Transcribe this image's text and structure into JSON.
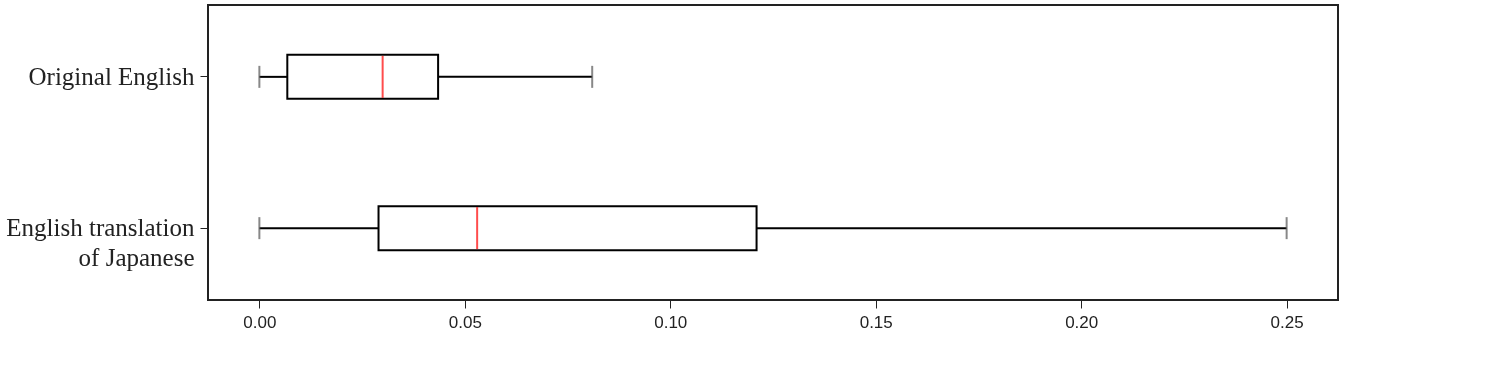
{
  "chart_data": {
    "type": "box",
    "orientation": "horizontal",
    "categories": [
      "Original English",
      "English translation\nof Japanese"
    ],
    "boxes": [
      {
        "low": 0.0,
        "q1": 0.0068,
        "median": 0.03,
        "q3": 0.0435,
        "high": 0.081
      },
      {
        "low": 0.0,
        "q1": 0.029,
        "median": 0.053,
        "q3": 0.121,
        "high": 0.25
      }
    ],
    "xlim": [
      -0.0125,
      0.2625
    ],
    "xticks": [
      {
        "value": 0,
        "label": "0.00"
      },
      {
        "value": 0.05,
        "label": "0.05"
      },
      {
        "value": 0.1,
        "label": "0.10"
      },
      {
        "value": 0.15,
        "label": "0.15"
      },
      {
        "value": 0.2,
        "label": "0.20"
      },
      {
        "value": 0.25,
        "label": "0.25"
      }
    ],
    "grid": false
  }
}
